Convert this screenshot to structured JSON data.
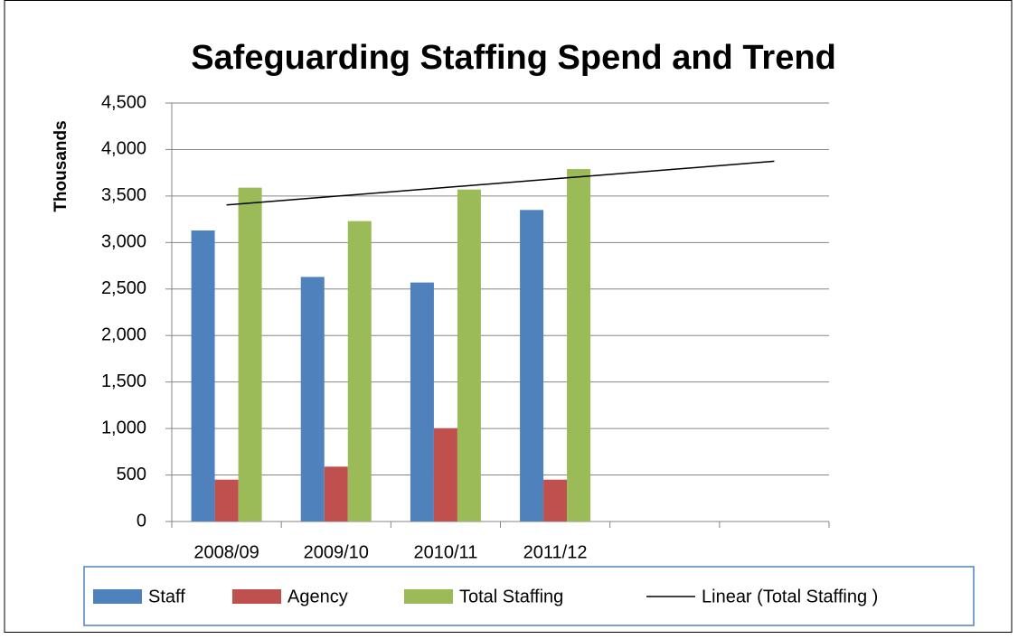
{
  "chart_data": {
    "type": "bar",
    "title": "Safeguarding Staffing Spend and Trend",
    "y_label": "Thousands",
    "categories": [
      "2008/09",
      "2009/10",
      "2010/11",
      "2011/12",
      null,
      null
    ],
    "series": [
      {
        "name": "Staff",
        "color": "#4f81bd",
        "values": [
          3130,
          2630,
          2570,
          3350,
          null,
          null
        ]
      },
      {
        "name": "Agency",
        "color": "#c0504d",
        "values": [
          450,
          590,
          1000,
          450,
          null,
          null
        ]
      },
      {
        "name": "Total Staffing",
        "color": "#9bbb59",
        "values": [
          3590,
          3230,
          3570,
          3790,
          null,
          null
        ],
        "trendline": {
          "type": "linear",
          "name": "Linear (Total Staffing )",
          "color": "#000000"
        }
      }
    ],
    "ylim": [
      0,
      4500
    ],
    "yticks": [
      0,
      500,
      {
        "value": 1000,
        "label": "1,000"
      },
      {
        "value": 1500,
        "label": "1,500"
      },
      {
        "value": 2000,
        "label": "2,000"
      },
      {
        "value": 2500,
        "label": "2,500"
      },
      {
        "value": 3000,
        "label": "3,000"
      },
      {
        "value": 3500,
        "label": "3,500"
      },
      {
        "value": 4000,
        "label": "4,000"
      },
      {
        "value": 4500,
        "label": "4,500"
      }
    ],
    "grid": true,
    "legend": "bottom"
  }
}
